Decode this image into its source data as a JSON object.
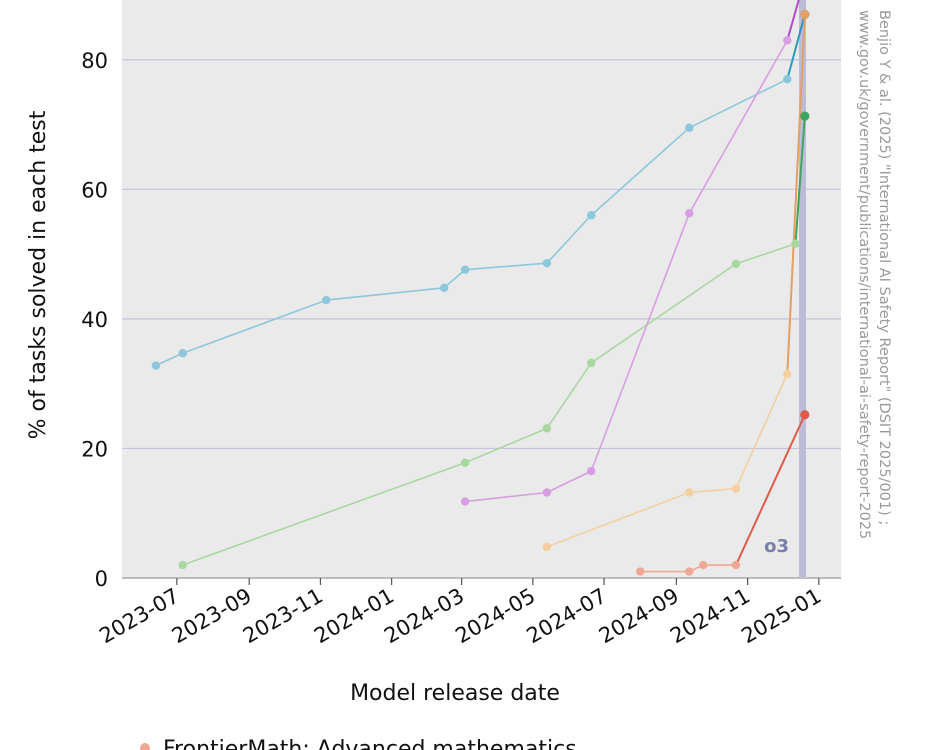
{
  "chart_data": {
    "type": "line",
    "xlabel": "Model release date",
    "ylabel": "% of tasks solved in each test",
    "ylim": [
      0,
      90
    ],
    "xlim": [
      "2023-05-15",
      "2025-01-20"
    ],
    "yticks": [
      0,
      20,
      40,
      60,
      80
    ],
    "xticks": [
      "2023-07",
      "2023-09",
      "2023-11",
      "2024-01",
      "2024-03",
      "2024-05",
      "2024-07",
      "2024-09",
      "2024-11",
      "2025-01"
    ],
    "grid": "horizontal",
    "highlight": {
      "label": "o3",
      "start": "2024-12-15",
      "end": "2024-12-21",
      "color": "#bcbcd6"
    },
    "source_note": "Benjio Y & al. (2025) \"International AI Safety Report\" (DSIT 2025/001) ; www.gov.uk/government/publications/international-ai-safety-report-2025",
    "legend_visible": "FrontierMath: Advanced mathematics",
    "series": [
      {
        "name": "",
        "color": "#8cc7dc",
        "highlight_color": "#2a99bb",
        "points": [
          [
            "2023-06-13",
            32.8
          ],
          [
            "2023-07-06",
            34.7
          ],
          [
            "2023-11-06",
            42.9
          ],
          [
            "2024-02-15",
            44.8
          ],
          [
            "2024-03-04",
            47.6
          ],
          [
            "2024-05-13",
            48.6
          ],
          [
            "2024-06-20",
            56.0
          ],
          [
            "2024-09-12",
            69.5
          ],
          [
            "2024-12-05",
            77.0
          ],
          [
            "2024-12-20",
            87.0
          ]
        ]
      },
      {
        "name": "",
        "color": "#a8d8a0",
        "highlight_color": "#3fa55f",
        "points": [
          [
            "2023-07-06",
            2.0
          ],
          [
            "2024-03-04",
            17.8
          ],
          [
            "2024-05-13",
            23.1
          ],
          [
            "2024-06-20",
            33.2
          ],
          [
            "2024-10-22",
            48.5
          ],
          [
            "2024-12-12",
            51.6
          ],
          [
            "2024-12-20",
            71.3
          ]
        ]
      },
      {
        "name": "",
        "color": "#d89ee2",
        "highlight_color": "#b348d0",
        "points": [
          [
            "2024-03-04",
            11.8
          ],
          [
            "2024-05-13",
            13.2
          ],
          [
            "2024-06-20",
            16.5
          ],
          [
            "2024-09-12",
            56.3
          ],
          [
            "2024-12-05",
            83.0
          ],
          [
            "2024-12-16",
            90.0
          ]
        ]
      },
      {
        "name": "",
        "color": "#f4cfa0",
        "highlight_color": "#e3a063",
        "points": [
          [
            "2024-05-13",
            4.8
          ],
          [
            "2024-09-12",
            13.2
          ],
          [
            "2024-10-22",
            13.8
          ],
          [
            "2024-12-05",
            31.5
          ],
          [
            "2024-12-20",
            87.0
          ]
        ]
      },
      {
        "name": "FrontierMath: Advanced mathematics",
        "color": "#f0a892",
        "highlight_color": "#e05a48",
        "points": [
          [
            "2024-08-01",
            1.0
          ],
          [
            "2024-09-12",
            1.0
          ],
          [
            "2024-09-24",
            2.0
          ],
          [
            "2024-10-22",
            2.0
          ],
          [
            "2024-12-20",
            25.2
          ]
        ]
      }
    ]
  }
}
